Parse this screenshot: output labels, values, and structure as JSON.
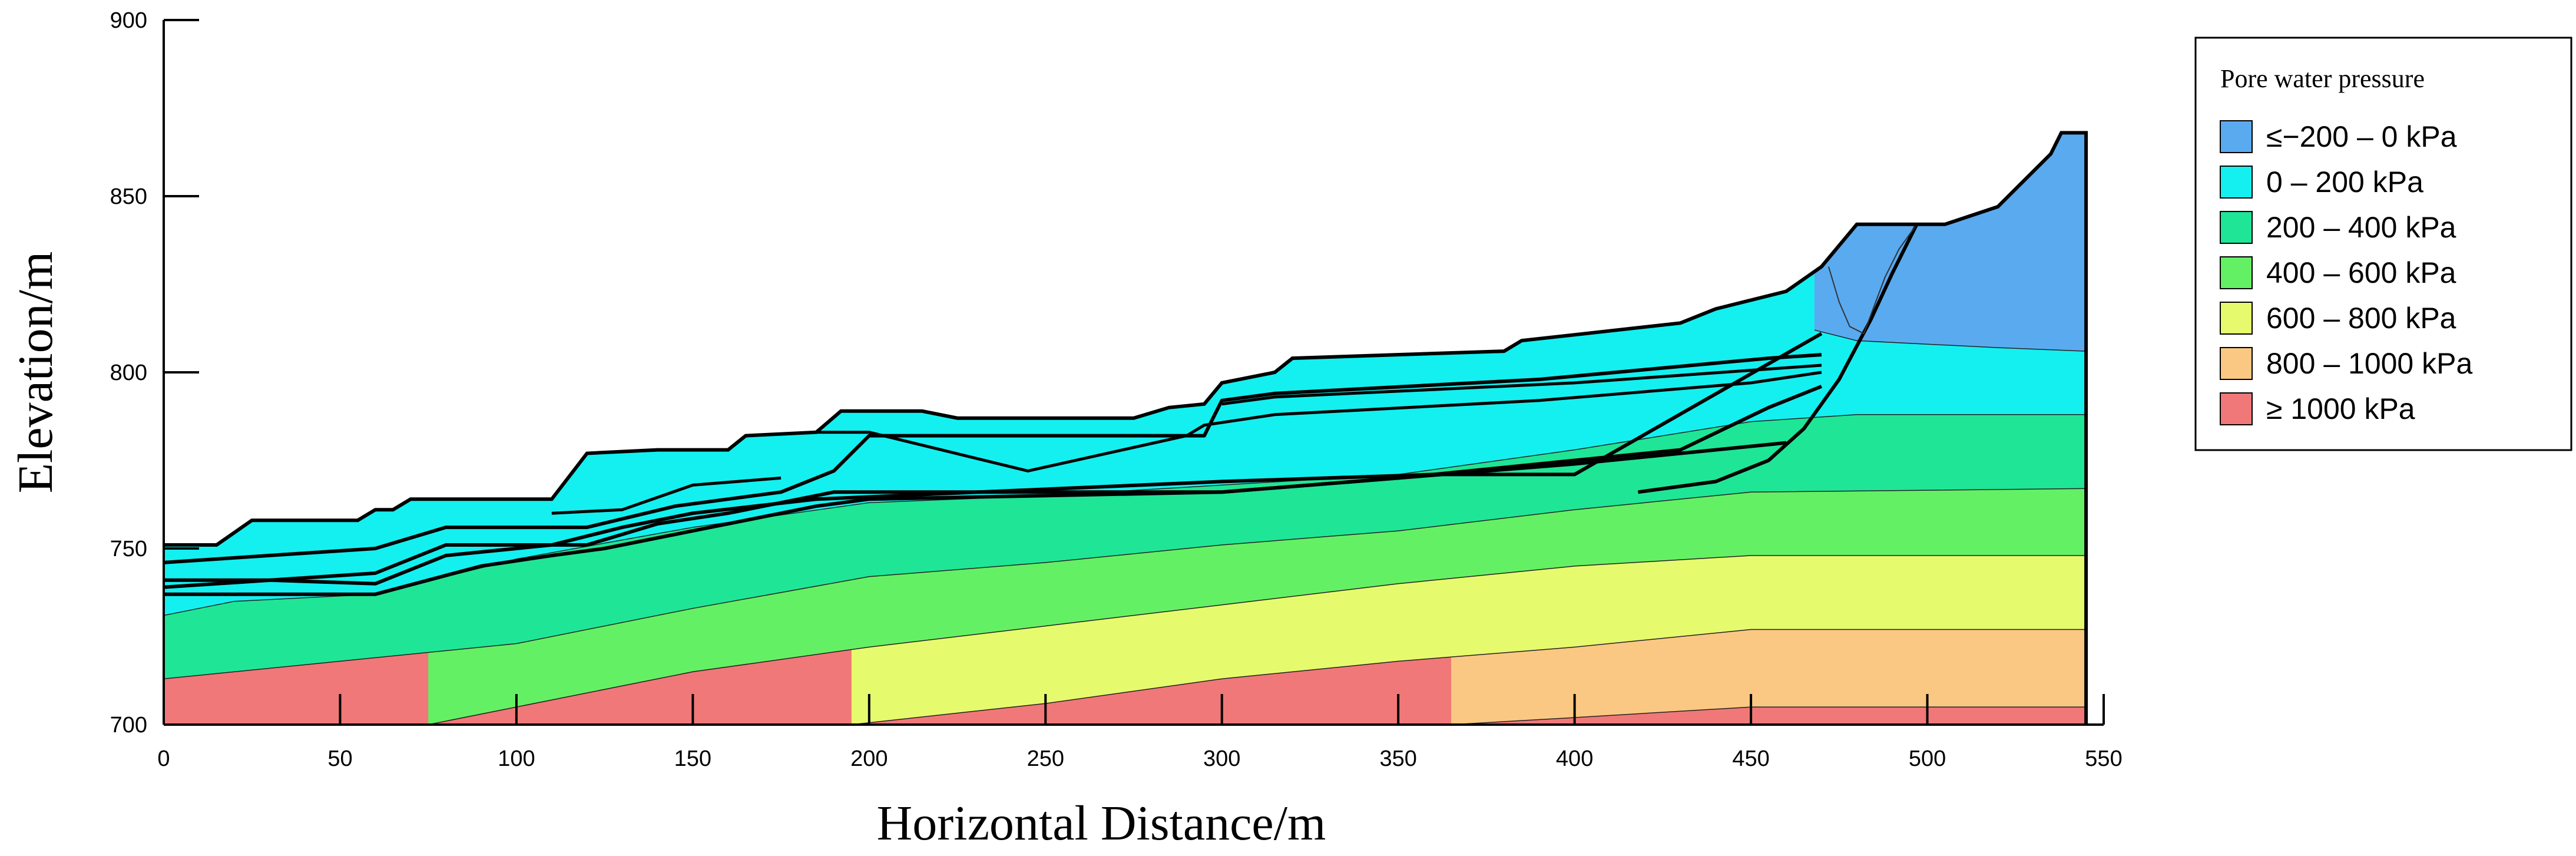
{
  "chart_data": {
    "type": "area",
    "xlabel": "Horizontal Distance/m",
    "ylabel": "Elevation/m",
    "xlim": [
      0,
      550
    ],
    "ylim": [
      700,
      900
    ],
    "x_ticks": [
      "0",
      "50",
      "100",
      "150",
      "200",
      "250",
      "300",
      "350",
      "400",
      "450",
      "500",
      "550"
    ],
    "y_ticks": [
      "700",
      "750",
      "800",
      "850",
      "900"
    ],
    "legend": {
      "title": "Pore water pressure",
      "position": "right",
      "entries": [
        {
          "label": "≤−200 – 0 kPa",
          "color": "#5aaaf0"
        },
        {
          "label": "0 – 200 kPa",
          "color": "#14f0f0"
        },
        {
          "label": "200 – 400 kPa",
          "color": "#1ee696"
        },
        {
          "label": "400 – 600 kPa",
          "color": "#64f064"
        },
        {
          "label": "600 – 800 kPa",
          "color": "#e6fa6e"
        },
        {
          "label": "800 – 1000  kPa",
          "color": "#fac882"
        },
        {
          "label": "≥ 1000  kPa",
          "color": "#f07878"
        }
      ]
    },
    "surface": [
      [
        0,
        751
      ],
      [
        15,
        751
      ],
      [
        25,
        758
      ],
      [
        55,
        758
      ],
      [
        60,
        761
      ],
      [
        65,
        761
      ],
      [
        70,
        764
      ],
      [
        110,
        764
      ],
      [
        120,
        777
      ],
      [
        140,
        778
      ],
      [
        160,
        778
      ],
      [
        165,
        782
      ],
      [
        185,
        783
      ],
      [
        192,
        789
      ],
      [
        215,
        789
      ],
      [
        225,
        787
      ],
      [
        275,
        787
      ],
      [
        285,
        790
      ],
      [
        295,
        791
      ],
      [
        300,
        797
      ],
      [
        315,
        800
      ],
      [
        320,
        804
      ],
      [
        380,
        806
      ],
      [
        385,
        809
      ],
      [
        430,
        814
      ],
      [
        440,
        818
      ],
      [
        460,
        823
      ],
      [
        470,
        830
      ],
      [
        480,
        842
      ],
      [
        490,
        842
      ],
      [
        500,
        842
      ],
      [
        505,
        842
      ],
      [
        520,
        847
      ],
      [
        535,
        862
      ],
      [
        538,
        868
      ],
      [
        545,
        868
      ]
    ],
    "bands": [
      {
        "label": "≤−200 – 0 kPa",
        "lower": [
          [
            468,
            812
          ],
          [
            480,
            809
          ],
          [
            500,
            808
          ],
          [
            520,
            807
          ],
          [
            545,
            806
          ]
        ]
      },
      {
        "label": "0 – 200 kPa",
        "lower": [
          [
            0,
            731
          ],
          [
            10,
            733
          ],
          [
            20,
            735
          ],
          [
            60,
            737
          ],
          [
            100,
            747
          ],
          [
            150,
            756
          ],
          [
            200,
            763
          ],
          [
            250,
            765
          ],
          [
            300,
            768
          ],
          [
            350,
            771
          ],
          [
            400,
            778
          ],
          [
            450,
            786
          ],
          [
            480,
            788
          ],
          [
            545,
            788
          ]
        ]
      },
      {
        "label": "200 – 400 kPa",
        "lower": [
          [
            0,
            713
          ],
          [
            50,
            718
          ],
          [
            100,
            723
          ],
          [
            150,
            733
          ],
          [
            200,
            742
          ],
          [
            250,
            746
          ],
          [
            300,
            751
          ],
          [
            350,
            755
          ],
          [
            400,
            761
          ],
          [
            450,
            766
          ],
          [
            545,
            767
          ]
        ]
      },
      {
        "label": "400 – 600 kPa",
        "lower": [
          [
            75,
            700
          ],
          [
            100,
            705
          ],
          [
            150,
            715
          ],
          [
            200,
            722
          ],
          [
            250,
            728
          ],
          [
            300,
            734
          ],
          [
            350,
            740
          ],
          [
            400,
            745
          ],
          [
            450,
            748
          ],
          [
            545,
            748
          ]
        ]
      },
      {
        "label": "600 – 800 kPa",
        "lower": [
          [
            195,
            700
          ],
          [
            250,
            706
          ],
          [
            300,
            713
          ],
          [
            350,
            718
          ],
          [
            400,
            722
          ],
          [
            450,
            727
          ],
          [
            545,
            727
          ]
        ]
      },
      {
        "label": "800 – 1000  kPa",
        "lower": [
          [
            365,
            700
          ],
          [
            400,
            702
          ],
          [
            450,
            705
          ],
          [
            545,
            705
          ]
        ]
      }
    ],
    "layer_lines": [
      [
        [
          0,
          746
        ],
        [
          60,
          750
        ],
        [
          80,
          756
        ],
        [
          120,
          756
        ],
        [
          145,
          762
        ],
        [
          175,
          766
        ],
        [
          190,
          772
        ],
        [
          200,
          782
        ],
        [
          295,
          782
        ],
        [
          300,
          792
        ],
        [
          315,
          794
        ],
        [
          390,
          798
        ],
        [
          455,
          804
        ],
        [
          470,
          805
        ]
      ],
      [
        [
          0,
          739
        ],
        [
          60,
          743
        ],
        [
          80,
          751
        ],
        [
          120,
          751
        ],
        [
          140,
          757
        ],
        [
          160,
          760
        ],
        [
          180,
          764
        ],
        [
          190,
          766
        ],
        [
          300,
          766
        ],
        [
          350,
          770
        ],
        [
          400,
          774
        ],
        [
          440,
          778
        ],
        [
          460,
          780
        ]
      ],
      [
        [
          0,
          737
        ],
        [
          60,
          737
        ],
        [
          90,
          745
        ],
        [
          110,
          748
        ],
        [
          125,
          750
        ],
        [
          150,
          755
        ],
        [
          170,
          759
        ],
        [
          185,
          762
        ],
        [
          200,
          764
        ],
        [
          300,
          766
        ],
        [
          350,
          770
        ],
        [
          400,
          775
        ],
        [
          430,
          778
        ],
        [
          455,
          790
        ],
        [
          470,
          796
        ]
      ],
      [
        [
          0,
          741
        ],
        [
          30,
          741
        ],
        [
          60,
          740
        ],
        [
          80,
          748
        ],
        [
          110,
          751
        ],
        [
          130,
          756
        ],
        [
          150,
          760
        ],
        [
          185,
          764
        ],
        [
          300,
          769
        ],
        [
          360,
          771
        ],
        [
          400,
          771
        ],
        [
          470,
          811
        ]
      ]
    ],
    "inner_lines": [
      [
        [
          185,
          783
        ],
        [
          200,
          783
        ],
        [
          245,
          772
        ],
        [
          290,
          782
        ],
        [
          295,
          785
        ],
        [
          315,
          788
        ],
        [
          390,
          792
        ],
        [
          450,
          797
        ],
        [
          470,
          800
        ]
      ],
      [
        [
          110,
          760
        ],
        [
          130,
          761
        ],
        [
          150,
          768
        ],
        [
          175,
          770
        ]
      ],
      [
        [
          300,
          791
        ],
        [
          315,
          793
        ],
        [
          400,
          797
        ],
        [
          470,
          802
        ]
      ]
    ],
    "slip_surface": [
      [
        418,
        766
      ],
      [
        440,
        769
      ],
      [
        455,
        775
      ],
      [
        465,
        784
      ],
      [
        475,
        798
      ],
      [
        484,
        815
      ],
      [
        490,
        828
      ],
      [
        497,
        842
      ]
    ],
    "water_boundary": [
      [
        472,
        830
      ],
      [
        475,
        820
      ],
      [
        478,
        813
      ],
      [
        482,
        811
      ],
      [
        488,
        827
      ],
      [
        492,
        835
      ],
      [
        497,
        842
      ]
    ]
  }
}
